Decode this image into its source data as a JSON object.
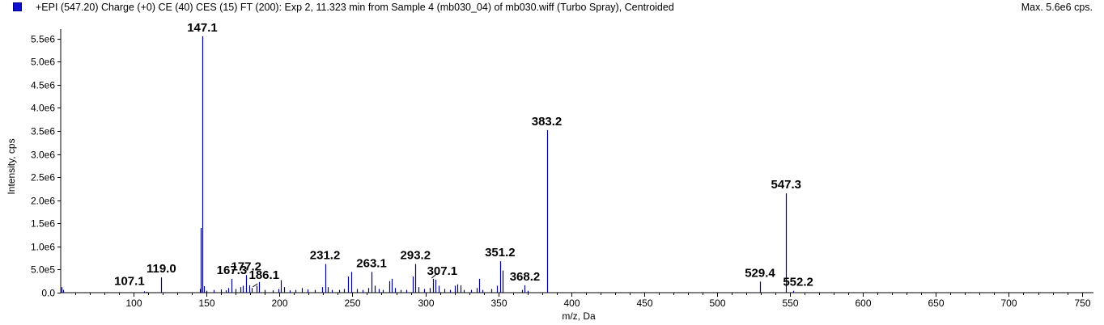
{
  "header": {
    "title": "+EPI (547.20) Charge (+0) CE (40) CES (15) FT (200): Exp 2, 11.323 min from Sample 4 (mb030_04) of mb030.wiff (Turbo Spray), Centroided",
    "max_label": "Max. 5.6e6 cps."
  },
  "colors": {
    "series": "#00008b",
    "swatch": "#1010d0",
    "axis": "#000000"
  },
  "chart_data": {
    "type": "bar",
    "xlabel": "m/z, Da",
    "ylabel": "Intensity, cps",
    "xlim": [
      50,
      758
    ],
    "ylim": [
      0,
      5600000.0
    ],
    "x_ticks": [
      100,
      150,
      200,
      250,
      300,
      350,
      400,
      450,
      500,
      550,
      600,
      650,
      700,
      750
    ],
    "y_ticks": [
      {
        "value": 0,
        "label": "0.0"
      },
      {
        "value": 500000,
        "label": "5.0e5"
      },
      {
        "value": 1000000,
        "label": "1.0e6"
      },
      {
        "value": 1500000,
        "label": "1.5e6"
      },
      {
        "value": 2000000,
        "label": "2.0e6"
      },
      {
        "value": 2500000,
        "label": "2.5e6"
      },
      {
        "value": 3000000,
        "label": "3.0e6"
      },
      {
        "value": 3500000,
        "label": "3.5e6"
      },
      {
        "value": 4000000,
        "label": "4.0e6"
      },
      {
        "value": 4500000,
        "label": "4.5e6"
      },
      {
        "value": 5000000,
        "label": "5.0e6"
      },
      {
        "value": 5500000,
        "label": "5.5e6"
      }
    ],
    "peaks": [
      {
        "mz": 50.5,
        "intensity": 120000
      },
      {
        "mz": 51.5,
        "intensity": 60000
      },
      {
        "mz": 107.1,
        "intensity": 30000
      },
      {
        "mz": 109.0,
        "intensity": 20000
      },
      {
        "mz": 119.0,
        "intensity": 330000
      },
      {
        "mz": 145.5,
        "intensity": 80000
      },
      {
        "mz": 146.1,
        "intensity": 1400000
      },
      {
        "mz": 147.1,
        "intensity": 5550000
      },
      {
        "mz": 148.1,
        "intensity": 140000
      },
      {
        "mz": 150.0,
        "intensity": 40000
      },
      {
        "mz": 155.1,
        "intensity": 60000
      },
      {
        "mz": 160.1,
        "intensity": 70000
      },
      {
        "mz": 163.1,
        "intensity": 50000
      },
      {
        "mz": 165.1,
        "intensity": 100000
      },
      {
        "mz": 167.3,
        "intensity": 300000
      },
      {
        "mz": 170.1,
        "intensity": 80000
      },
      {
        "mz": 173.1,
        "intensity": 120000
      },
      {
        "mz": 175.1,
        "intensity": 150000
      },
      {
        "mz": 177.2,
        "intensity": 380000
      },
      {
        "mz": 179.1,
        "intensity": 160000
      },
      {
        "mz": 181.1,
        "intensity": 100000
      },
      {
        "mz": 184.1,
        "intensity": 150000
      },
      {
        "mz": 186.1,
        "intensity": 230000
      },
      {
        "mz": 190.1,
        "intensity": 60000
      },
      {
        "mz": 195.1,
        "intensity": 50000
      },
      {
        "mz": 199.1,
        "intensity": 80000
      },
      {
        "mz": 201.1,
        "intensity": 270000
      },
      {
        "mz": 203.1,
        "intensity": 120000
      },
      {
        "mz": 207.1,
        "intensity": 50000
      },
      {
        "mz": 211.1,
        "intensity": 60000
      },
      {
        "mz": 215.1,
        "intensity": 100000
      },
      {
        "mz": 219.1,
        "intensity": 70000
      },
      {
        "mz": 224.1,
        "intensity": 60000
      },
      {
        "mz": 229.1,
        "intensity": 120000
      },
      {
        "mz": 231.2,
        "intensity": 620000
      },
      {
        "mz": 233.1,
        "intensity": 120000
      },
      {
        "mz": 236.1,
        "intensity": 60000
      },
      {
        "mz": 241.1,
        "intensity": 60000
      },
      {
        "mz": 244.1,
        "intensity": 80000
      },
      {
        "mz": 247.1,
        "intensity": 350000
      },
      {
        "mz": 249.1,
        "intensity": 450000
      },
      {
        "mz": 253.1,
        "intensity": 80000
      },
      {
        "mz": 257.1,
        "intensity": 60000
      },
      {
        "mz": 261.1,
        "intensity": 100000
      },
      {
        "mz": 263.1,
        "intensity": 450000
      },
      {
        "mz": 265.1,
        "intensity": 150000
      },
      {
        "mz": 268.1,
        "intensity": 80000
      },
      {
        "mz": 271.1,
        "intensity": 60000
      },
      {
        "mz": 275.1,
        "intensity": 250000
      },
      {
        "mz": 277.1,
        "intensity": 300000
      },
      {
        "mz": 279.1,
        "intensity": 100000
      },
      {
        "mz": 283.1,
        "intensity": 60000
      },
      {
        "mz": 287.1,
        "intensity": 60000
      },
      {
        "mz": 291.1,
        "intensity": 350000
      },
      {
        "mz": 293.2,
        "intensity": 620000
      },
      {
        "mz": 295.1,
        "intensity": 120000
      },
      {
        "mz": 299.1,
        "intensity": 80000
      },
      {
        "mz": 303.1,
        "intensity": 100000
      },
      {
        "mz": 305.1,
        "intensity": 300000
      },
      {
        "mz": 307.1,
        "intensity": 280000
      },
      {
        "mz": 309.1,
        "intensity": 150000
      },
      {
        "mz": 313.1,
        "intensity": 80000
      },
      {
        "mz": 317.1,
        "intensity": 60000
      },
      {
        "mz": 320.1,
        "intensity": 150000
      },
      {
        "mz": 322.1,
        "intensity": 180000
      },
      {
        "mz": 324.1,
        "intensity": 160000
      },
      {
        "mz": 326.1,
        "intensity": 60000
      },
      {
        "mz": 331.1,
        "intensity": 60000
      },
      {
        "mz": 335.1,
        "intensity": 100000
      },
      {
        "mz": 337.1,
        "intensity": 300000
      },
      {
        "mz": 339.1,
        "intensity": 60000
      },
      {
        "mz": 345.1,
        "intensity": 80000
      },
      {
        "mz": 349.1,
        "intensity": 150000
      },
      {
        "mz": 351.2,
        "intensity": 680000
      },
      {
        "mz": 353.1,
        "intensity": 480000
      },
      {
        "mz": 366.1,
        "intensity": 60000
      },
      {
        "mz": 368.2,
        "intensity": 160000
      },
      {
        "mz": 370.1,
        "intensity": 40000
      },
      {
        "mz": 383.2,
        "intensity": 3520000
      },
      {
        "mz": 529.4,
        "intensity": 240000
      },
      {
        "mz": 547.3,
        "intensity": 2150000
      },
      {
        "mz": 552.2,
        "intensity": 40000
      }
    ],
    "labels": [
      {
        "text": "107.1",
        "mz": 107.1,
        "intensity": 30000
      },
      {
        "text": "119.0",
        "mz": 119.0,
        "intensity": 330000
      },
      {
        "text": "147.1",
        "mz": 147.1,
        "intensity": 5550000
      },
      {
        "text": "167.3",
        "mz": 167.3,
        "intensity": 300000
      },
      {
        "text": "177.2",
        "mz": 177.2,
        "intensity": 380000
      },
      {
        "text": "186.1",
        "mz": 186.1,
        "intensity": 230000
      },
      {
        "text": "231.2",
        "mz": 231.2,
        "intensity": 620000
      },
      {
        "text": "263.1",
        "mz": 263.1,
        "intensity": 450000
      },
      {
        "text": "293.2",
        "mz": 293.2,
        "intensity": 620000
      },
      {
        "text": "307.1",
        "mz": 307.1,
        "intensity": 280000
      },
      {
        "text": "351.2",
        "mz": 351.2,
        "intensity": 680000
      },
      {
        "text": "368.2",
        "mz": 368.2,
        "intensity": 160000
      },
      {
        "text": "383.2",
        "mz": 383.2,
        "intensity": 3520000
      },
      {
        "text": "529.4",
        "mz": 529.4,
        "intensity": 240000
      },
      {
        "text": "547.3",
        "mz": 547.3,
        "intensity": 2150000
      },
      {
        "text": "552.2",
        "mz": 552.2,
        "intensity": 40000
      }
    ]
  }
}
